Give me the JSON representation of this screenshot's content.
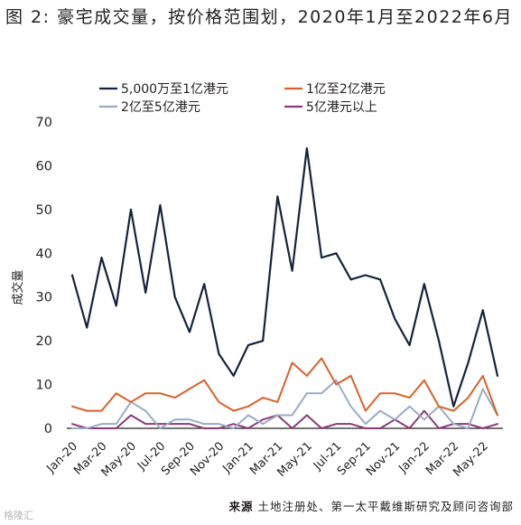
{
  "title": "图 2: 豪宅成交量，按价格范围划，2020年1月至2022年6月",
  "source": {
    "label": "来源",
    "text": "土地注册处、第一太平戴维斯研究及顾问咨询部"
  },
  "watermark": "格隆汇",
  "chart_data": {
    "type": "line",
    "ylabel": "成交量",
    "ylim": [
      0,
      70
    ],
    "yticks": [
      0,
      10,
      20,
      30,
      40,
      50,
      60,
      70
    ],
    "grid": false,
    "legend_position": "top",
    "x": [
      "Jan-20",
      "Feb-20",
      "Mar-20",
      "Apr-20",
      "May-20",
      "Jun-20",
      "Jul-20",
      "Aug-20",
      "Sep-20",
      "Oct-20",
      "Nov-20",
      "Dec-20",
      "Jan-21",
      "Feb-21",
      "Mar-21",
      "Apr-21",
      "May-21",
      "Jun-21",
      "Jul-21",
      "Aug-21",
      "Sep-21",
      "Oct-21",
      "Nov-21",
      "Dec-21",
      "Jan-22",
      "Feb-22",
      "Mar-22",
      "Apr-22",
      "May-22",
      "Jun-22"
    ],
    "xticklabels": [
      "Jan-20",
      "Mar-20",
      "May-20",
      "Jul-20",
      "Sep-20",
      "Nov-20",
      "Jan-21",
      "Mar-21",
      "May-21",
      "Jul-21",
      "Sep-21",
      "Nov-21",
      "Jan-22",
      "Mar-22",
      "May-22"
    ],
    "series": [
      {
        "name": "5,000万至1亿港元",
        "color": "#14233c",
        "values": [
          35,
          23,
          39,
          28,
          50,
          31,
          51,
          30,
          22,
          33,
          17,
          12,
          19,
          20,
          53,
          36,
          64,
          39,
          40,
          34,
          35,
          34,
          25,
          19,
          33,
          20,
          5,
          15,
          27,
          12
        ]
      },
      {
        "name": "1亿至2亿港元",
        "color": "#d9612a",
        "values": [
          5,
          4,
          4,
          8,
          6,
          8,
          8,
          7,
          9,
          11,
          6,
          4,
          5,
          7,
          6,
          15,
          12,
          16,
          10,
          12,
          4,
          8,
          8,
          7,
          11,
          5,
          4,
          7,
          12,
          3
        ]
      },
      {
        "name": "2亿至5亿港元",
        "color": "#9aabc6",
        "values": [
          0,
          0,
          1,
          1,
          6,
          4,
          0,
          2,
          2,
          1,
          1,
          0,
          3,
          1,
          3,
          3,
          8,
          8,
          11,
          5,
          1,
          4,
          2,
          5,
          2,
          5,
          1,
          0,
          9,
          3
        ]
      },
      {
        "name": "5亿港元以上",
        "color": "#8b3a76",
        "values": [
          1,
          0,
          0,
          0,
          3,
          1,
          1,
          1,
          1,
          0,
          0,
          1,
          0,
          2,
          3,
          0,
          3,
          0,
          1,
          1,
          0,
          0,
          2,
          0,
          4,
          0,
          1,
          1,
          0,
          1
        ]
      }
    ]
  }
}
